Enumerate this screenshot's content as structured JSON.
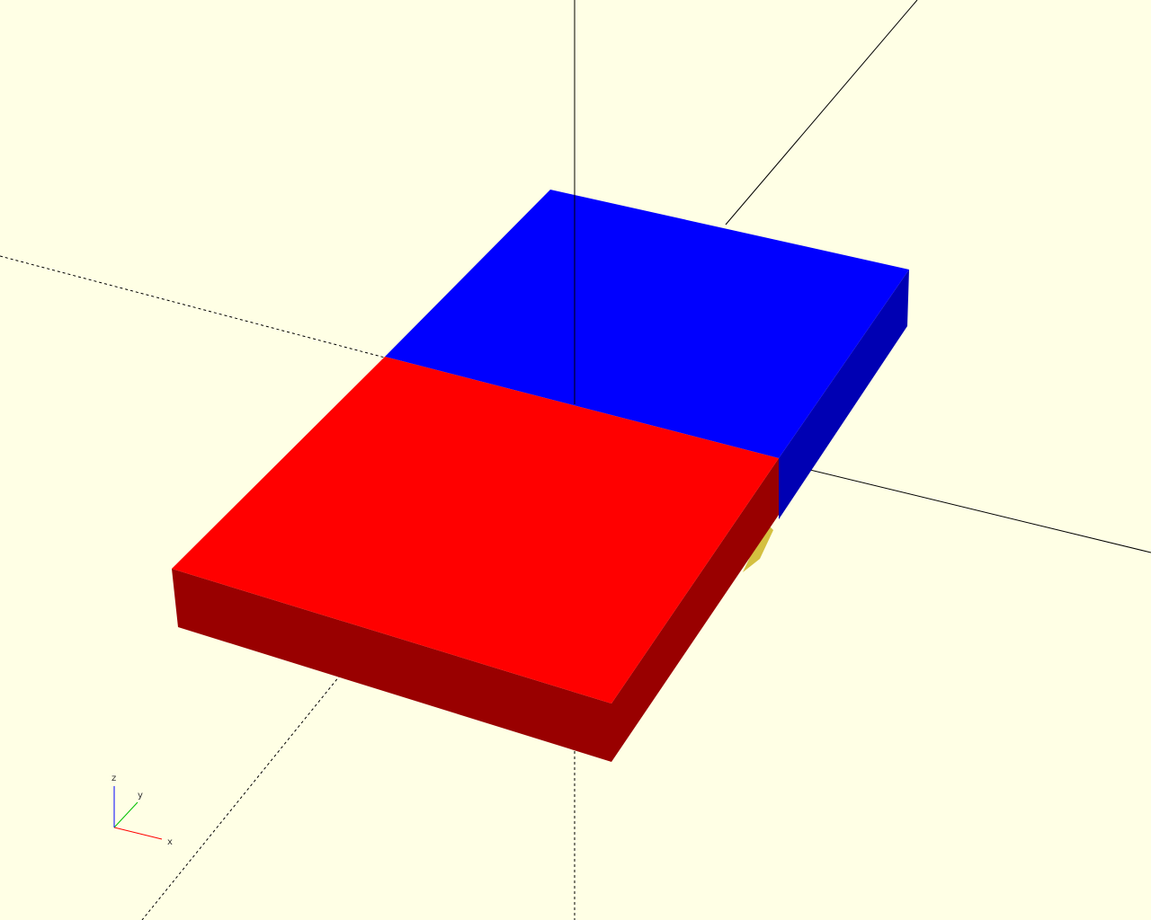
{
  "viewport": {
    "background": "#ffffe5",
    "mode": "3d-preview"
  },
  "axes_gizmo": {
    "z_label": "z",
    "y_label": "y",
    "x_label": "x",
    "x_color": "#ff0000",
    "y_color": "#00c000",
    "z_color": "#0000ff"
  },
  "objects": [
    {
      "name": "red-block",
      "top_color": "#ff0000",
      "side_color": "#990000"
    },
    {
      "name": "blue-block",
      "top_color": "#0000ff",
      "side_color": "#0000b3"
    },
    {
      "name": "yellow-object",
      "color": "#d4c040"
    }
  ]
}
